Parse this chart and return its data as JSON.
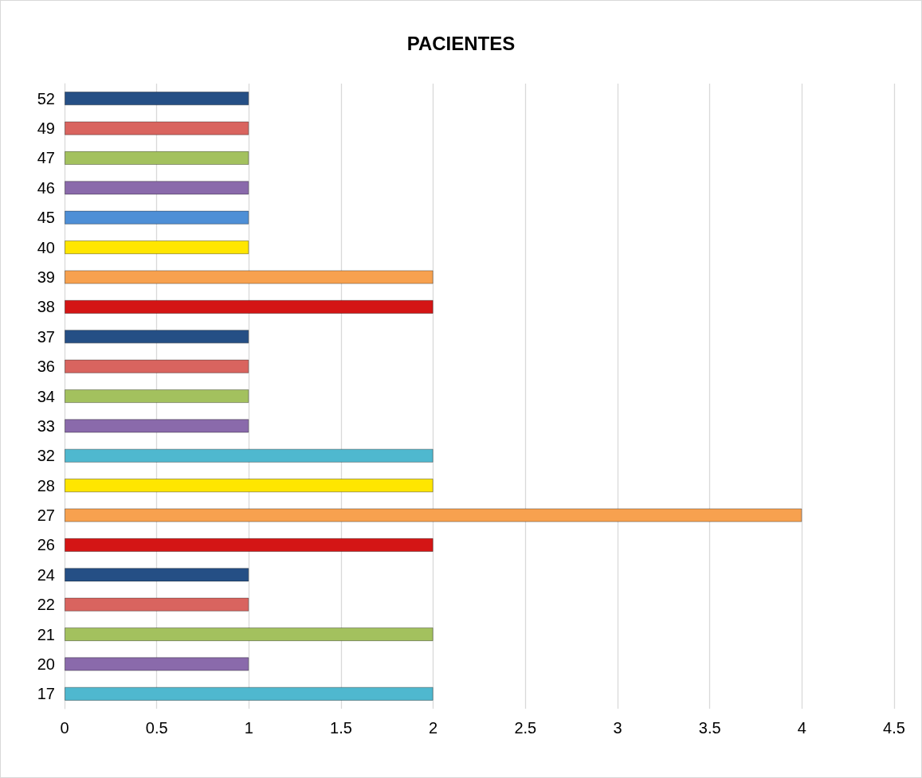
{
  "chart_data": {
    "type": "bar",
    "orientation": "horizontal",
    "title": "PACIENTES",
    "categories": [
      "52",
      "49",
      "47",
      "46",
      "45",
      "40",
      "39",
      "38",
      "37",
      "36",
      "34",
      "33",
      "32",
      "28",
      "27",
      "26",
      "24",
      "22",
      "21",
      "20",
      "17"
    ],
    "values": [
      1,
      1,
      1,
      1,
      1,
      1,
      2,
      2,
      1,
      1,
      1,
      1,
      2,
      2,
      4,
      2,
      1,
      1,
      2,
      1,
      2
    ],
    "colors": [
      "#254f85",
      "#d9645f",
      "#a3c15e",
      "#8a6aab",
      "#4e8fd6",
      "#ffe600",
      "#f7a14f",
      "#d41515",
      "#254f85",
      "#d9645f",
      "#a3c15e",
      "#8a6aab",
      "#4fb8cf",
      "#ffe600",
      "#f7a14f",
      "#d41515",
      "#254f85",
      "#d9645f",
      "#a3c15e",
      "#8a6aab",
      "#4fb8cf"
    ],
    "xlim": [
      0,
      4.5
    ],
    "xticks": [
      0,
      0.5,
      1,
      1.5,
      2,
      2.5,
      3,
      3.5,
      4,
      4.5
    ],
    "grid": "x"
  }
}
